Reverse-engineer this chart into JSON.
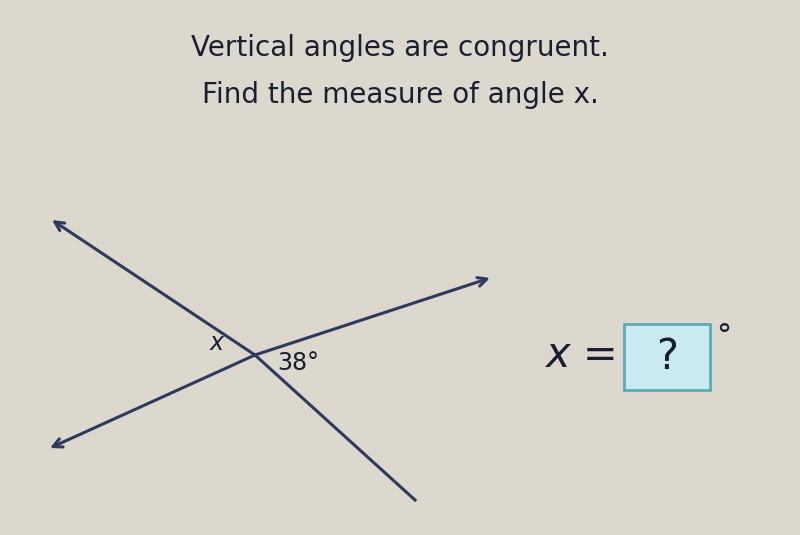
{
  "title_line1": "Vertical angles are congruent.",
  "title_line2": "Find the measure of angle x.",
  "background_color": "#ddd8ce",
  "line_color": "#2d3a5e",
  "text_color": "#1a1e30",
  "angle_label": "38°",
  "x_label": "x",
  "answer_text": "x = ",
  "answer_box_text": "?",
  "answer_degree": "°",
  "title_fontsize": 20,
  "label_fontsize": 17,
  "answer_fontsize": 30,
  "box_fill_color": "#c8eaf0",
  "box_edge_color": "#5aabb8"
}
